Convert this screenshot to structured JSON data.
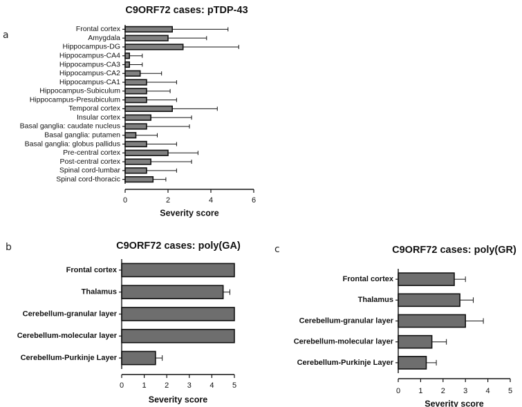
{
  "panels": {
    "a": "a",
    "b": "b",
    "c": "c"
  },
  "chart_data": [
    {
      "id": "a",
      "type": "bar",
      "orientation": "horizontal",
      "title": "C9ORF72 cases: pTDP-43",
      "xlabel": "Severity score",
      "ylabel": "",
      "xlim": [
        0,
        6
      ],
      "xticks": [
        0,
        2,
        4,
        6
      ],
      "bar_color": "#808080",
      "categories": [
        "Frontal cortex",
        "Amygdala",
        "Hippocampus-DG",
        "Hippocampus-CA4",
        "Hippocampus-CA3",
        "Hippocampus-CA2",
        "Hippocampus-CA1",
        "Hippocampus-Subiculum",
        "Hippocampus-Presubiculum",
        "Temporal cortex",
        "Insular cortex",
        "Basal ganglia: caudate nucleus",
        "Basal ganglia: putamen",
        "Basal ganglia: globus pallidus",
        "Pre-central cortex",
        "Post-central cortex",
        "Spinal cord-lumbar",
        "Spinal cord-thoracic"
      ],
      "values": [
        2.2,
        2.0,
        2.7,
        0.2,
        0.2,
        0.7,
        1.0,
        1.0,
        1.0,
        2.2,
        1.2,
        1.0,
        0.5,
        1.0,
        2.0,
        1.2,
        1.0,
        1.3
      ],
      "errors": [
        2.6,
        1.8,
        2.6,
        0.6,
        0.6,
        1.0,
        1.4,
        1.1,
        1.4,
        2.1,
        1.9,
        2.0,
        1.0,
        1.4,
        1.4,
        1.9,
        1.4,
        0.6
      ]
    },
    {
      "id": "b",
      "type": "bar",
      "orientation": "horizontal",
      "title": "C9ORF72 cases: poly(GA)",
      "xlabel": "Severity score",
      "ylabel": "",
      "xlim": [
        0,
        5
      ],
      "xticks": [
        0,
        1,
        2,
        3,
        4,
        5
      ],
      "bar_color": "#6e6e6e",
      "categories": [
        "Frontal cortex",
        "Thalamus",
        "Cerebellum-granular layer",
        "Cerebellum-molecular layer",
        "Cerebellum-Purkinje Layer"
      ],
      "values": [
        5.0,
        4.5,
        5.0,
        5.0,
        1.5
      ],
      "errors": [
        0,
        0.3,
        0,
        0,
        0.3
      ]
    },
    {
      "id": "c",
      "type": "bar",
      "orientation": "horizontal",
      "title": "C9ORF72 cases: poly(GR)",
      "xlabel": "Severity score",
      "ylabel": "",
      "xlim": [
        0,
        5
      ],
      "xticks": [
        0,
        1,
        2,
        3,
        4,
        5
      ],
      "bar_color": "#6e6e6e",
      "categories": [
        "Frontal cortex",
        "Thalamus",
        "Cerebellum-granular layer",
        "Cerebellum-molecular layer",
        "Cerebellum-Purkinje Layer"
      ],
      "values": [
        2.5,
        2.75,
        3.0,
        1.5,
        1.25
      ],
      "errors": [
        0.5,
        0.6,
        0.8,
        0.65,
        0.45
      ]
    }
  ]
}
